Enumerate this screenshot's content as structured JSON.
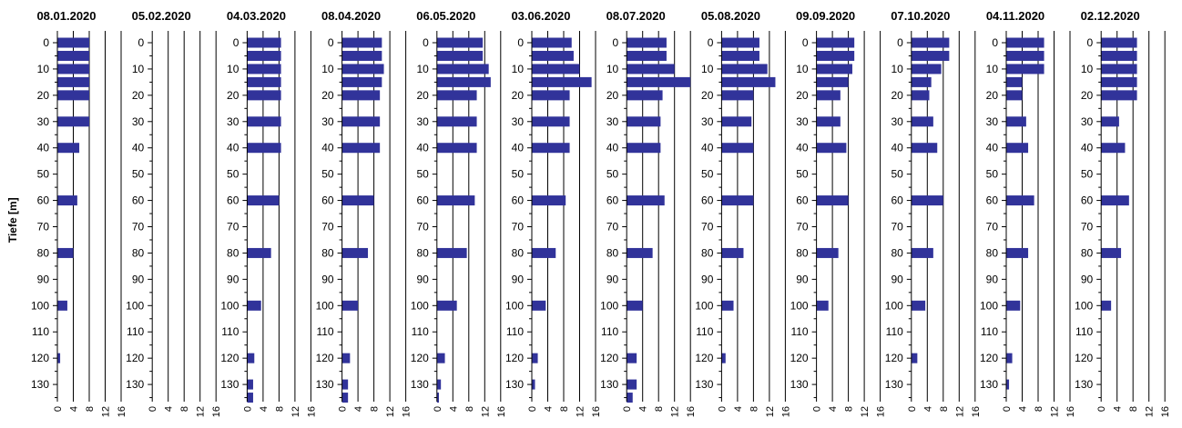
{
  "chart_data": {
    "type": "bar",
    "orientation": "horizontal",
    "ylabel": "Tiefe [m]",
    "depth_ticks": [
      0,
      10,
      20,
      30,
      40,
      50,
      60,
      70,
      80,
      90,
      100,
      110,
      120,
      130
    ],
    "x_ticks": [
      0,
      4,
      8,
      12,
      16
    ],
    "xlim": [
      0,
      16
    ],
    "ylim": [
      0,
      135
    ],
    "grid": true,
    "bar_color": "#31339a",
    "depths": [
      0,
      5,
      10,
      15,
      20,
      30,
      40,
      60,
      80,
      100,
      120,
      130,
      135
    ],
    "panels": [
      {
        "title": "08.01.2020",
        "values": [
          8.0,
          8.0,
          8.0,
          8.0,
          8.0,
          8.0,
          5.5,
          5.0,
          4.0,
          2.5,
          0.7,
          null,
          null
        ]
      },
      {
        "title": "05.02.2020",
        "values": [
          null,
          null,
          null,
          null,
          null,
          null,
          null,
          null,
          null,
          null,
          null,
          null,
          null
        ]
      },
      {
        "title": "04.03.2020",
        "values": [
          8.5,
          8.5,
          8.5,
          8.5,
          8.5,
          8.5,
          8.5,
          8.0,
          6.0,
          3.5,
          1.8,
          1.5,
          1.5
        ]
      },
      {
        "title": "08.04.2020",
        "values": [
          10.0,
          10.0,
          10.5,
          10.0,
          9.5,
          9.5,
          9.5,
          8.0,
          6.5,
          4.0,
          2.0,
          1.5,
          1.5
        ]
      },
      {
        "title": "06.05.2020",
        "values": [
          11.5,
          11.5,
          13.0,
          13.5,
          10.0,
          10.0,
          10.0,
          9.5,
          7.5,
          5.0,
          2.0,
          1.0,
          0.5
        ]
      },
      {
        "title": "03.06.2020",
        "values": [
          10.0,
          10.5,
          12.0,
          15.0,
          9.5,
          9.5,
          9.5,
          8.5,
          6.0,
          3.5,
          1.5,
          0.8,
          null
        ]
      },
      {
        "title": "08.07.2020",
        "values": [
          10.0,
          10.0,
          12.0,
          16.0,
          9.0,
          8.5,
          8.5,
          9.5,
          6.5,
          4.0,
          2.5,
          2.5,
          1.5
        ]
      },
      {
        "title": "05.08.2020",
        "values": [
          9.5,
          9.5,
          11.5,
          13.5,
          8.0,
          7.5,
          8.0,
          8.0,
          5.5,
          3.0,
          1.0,
          null,
          null
        ]
      },
      {
        "title": "09.09.2020",
        "values": [
          9.5,
          9.5,
          9.0,
          8.0,
          6.0,
          6.0,
          7.5,
          8.0,
          5.5,
          3.0,
          null,
          null,
          null
        ]
      },
      {
        "title": "07.10.2020",
        "values": [
          9.5,
          9.5,
          7.5,
          5.0,
          4.5,
          5.5,
          6.5,
          8.0,
          5.5,
          3.5,
          1.5,
          null,
          null
        ]
      },
      {
        "title": "04.11.2020",
        "values": [
          9.5,
          9.5,
          9.5,
          4.0,
          4.0,
          5.0,
          5.5,
          7.0,
          5.5,
          3.5,
          1.5,
          0.7,
          null
        ]
      },
      {
        "title": "02.12.2020",
        "values": [
          9.0,
          9.0,
          9.0,
          9.0,
          9.0,
          4.5,
          6.0,
          7.0,
          5.0,
          2.5,
          null,
          null,
          null
        ]
      }
    ]
  }
}
